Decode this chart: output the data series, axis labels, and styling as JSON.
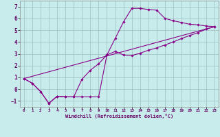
{
  "xlabel": "Windchill (Refroidissement éolien,°C)",
  "ylabel": "",
  "xlim": [
    -0.5,
    23.5
  ],
  "ylim": [
    -1.5,
    7.5
  ],
  "xticks": [
    0,
    1,
    2,
    3,
    4,
    5,
    6,
    7,
    8,
    9,
    10,
    11,
    12,
    13,
    14,
    15,
    16,
    17,
    18,
    19,
    20,
    21,
    22,
    23
  ],
  "yticks": [
    -1,
    0,
    1,
    2,
    3,
    4,
    5,
    6,
    7
  ],
  "bg_color": "#c8ecec",
  "line_color": "#880088",
  "grid_color": "#9bbfbf",
  "curve1_x": [
    0,
    1,
    2,
    3,
    4,
    5,
    6,
    7,
    8,
    9,
    10,
    11,
    12,
    13,
    14,
    15,
    16,
    17,
    18,
    19,
    20,
    21,
    22,
    23
  ],
  "curve1_y": [
    0.9,
    0.5,
    -0.2,
    -1.2,
    -0.6,
    -0.65,
    -0.65,
    -0.65,
    -0.65,
    -0.65,
    2.9,
    4.3,
    5.7,
    6.85,
    6.85,
    6.75,
    6.7,
    6.0,
    5.8,
    5.65,
    5.5,
    5.45,
    5.35,
    5.3
  ],
  "curve2_x": [
    0,
    1,
    2,
    3,
    4,
    5,
    6,
    7,
    8,
    9,
    10,
    11,
    12,
    13,
    14,
    15,
    16,
    17,
    18,
    19,
    20,
    21,
    22,
    23
  ],
  "curve2_y": [
    0.9,
    0.5,
    -0.2,
    -1.2,
    -0.6,
    -0.65,
    -0.65,
    0.85,
    1.6,
    2.15,
    2.9,
    3.2,
    2.9,
    2.85,
    3.05,
    3.3,
    3.5,
    3.75,
    4.0,
    4.3,
    4.55,
    4.8,
    5.1,
    5.3
  ],
  "curve3_x": [
    0,
    23
  ],
  "curve3_y": [
    0.9,
    5.3
  ],
  "marker": "D",
  "markersize": 1.8,
  "linewidth": 0.8
}
